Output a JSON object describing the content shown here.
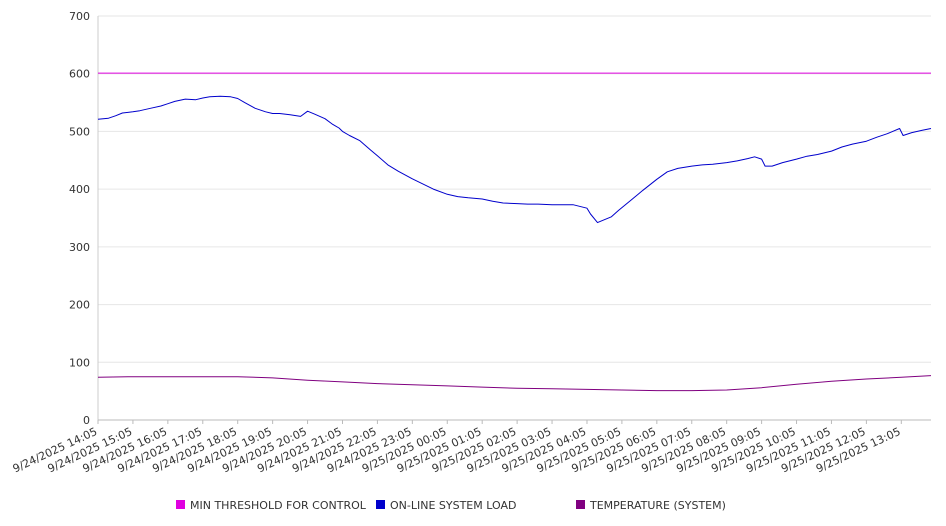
{
  "chart_data": {
    "type": "line",
    "title": "",
    "xlabel": "",
    "ylabel": "",
    "ylim": [
      0,
      700
    ],
    "yticks": [
      0,
      100,
      200,
      300,
      400,
      500,
      600,
      700
    ],
    "x_tick_labels": [
      "9/24/2025 14:05",
      "9/24/2025 15:05",
      "9/24/2025 16:05",
      "9/24/2025 17:05",
      "9/24/2025 18:05",
      "9/24/2025 19:05",
      "9/24/2025 20:05",
      "9/24/2025 21:05",
      "9/24/2025 22:05",
      "9/24/2025 23:05",
      "9/25/2025 00:05",
      "9/25/2025 01:05",
      "9/25/2025 02:05",
      "9/25/2025 03:05",
      "9/25/2025 04:05",
      "9/25/2025 05:05",
      "9/25/2025 06:05",
      "9/25/2025 07:05",
      "9/25/2025 08:05",
      "9/25/2025 09:05",
      "9/25/2025 10:05",
      "9/25/2025 11:05",
      "9/25/2025 12:05",
      "9/25/2025 13:05"
    ],
    "x_range_hours": [
      0,
      23.85
    ],
    "grid": true,
    "legend_position": "bottom",
    "series": [
      {
        "name": "MIN THRESHOLD FOR CONTROL",
        "color": "#e000e0",
        "x": [
          0,
          23.85
        ],
        "values": [
          601,
          601
        ]
      },
      {
        "name": "ON-LINE SYSTEM LOAD",
        "color": "#0000cc",
        "x": [
          0,
          0.3,
          0.5,
          0.7,
          1.0,
          1.2,
          1.5,
          1.8,
          2.0,
          2.2,
          2.5,
          2.8,
          3.0,
          3.2,
          3.5,
          3.8,
          4.0,
          4.2,
          4.5,
          4.8,
          5.0,
          5.2,
          5.5,
          5.8,
          6.0,
          6.2,
          6.5,
          6.7,
          6.9,
          7.0,
          7.2,
          7.5,
          7.8,
          8.0,
          8.3,
          8.6,
          9.0,
          9.3,
          9.6,
          10.0,
          10.3,
          10.6,
          11.0,
          11.3,
          11.6,
          12.0,
          12.3,
          12.6,
          13.0,
          13.3,
          13.6,
          14.0,
          14.1,
          14.3,
          14.5,
          14.7,
          14.9,
          15.1,
          15.3,
          15.6,
          16.0,
          16.3,
          16.6,
          17.0,
          17.3,
          17.6,
          18.0,
          18.3,
          18.6,
          18.8,
          19.0,
          19.1,
          19.3,
          19.6,
          20.0,
          20.3,
          20.6,
          21.0,
          21.3,
          21.6,
          22.0,
          22.3,
          22.6,
          22.95,
          23.05,
          23.3,
          23.6,
          23.85
        ],
        "values": [
          521,
          523,
          527,
          532,
          534,
          536,
          540,
          544,
          548,
          552,
          556,
          555,
          558,
          560,
          561,
          560,
          557,
          550,
          540,
          534,
          531,
          531,
          529,
          526,
          535,
          530,
          522,
          513,
          506,
          500,
          493,
          484,
          468,
          458,
          442,
          431,
          418,
          409,
          400,
          391,
          387,
          385,
          383,
          379,
          376,
          375,
          374,
          374,
          373,
          373,
          373,
          367,
          357,
          342,
          347,
          352,
          363,
          373,
          383,
          398,
          417,
          430,
          436,
          440,
          442,
          443,
          446,
          449,
          453,
          456,
          452,
          440,
          440,
          446,
          452,
          457,
          460,
          466,
          473,
          478,
          483,
          490,
          496,
          505,
          493,
          498,
          502,
          505
        ]
      },
      {
        "name": "TEMPERATURE (SYSTEM)",
        "color": "#800080",
        "x": [
          0,
          1,
          2,
          3,
          4,
          5,
          6,
          7,
          8,
          9,
          10,
          11,
          12,
          13,
          14,
          15,
          16,
          17,
          18,
          19,
          20,
          21,
          22,
          23,
          23.85
        ],
        "values": [
          74,
          75,
          75,
          75,
          75,
          73,
          69,
          66,
          63,
          61,
          59,
          57,
          55,
          54,
          53,
          52,
          51,
          51,
          52,
          56,
          62,
          67,
          71,
          74,
          77
        ]
      }
    ]
  }
}
